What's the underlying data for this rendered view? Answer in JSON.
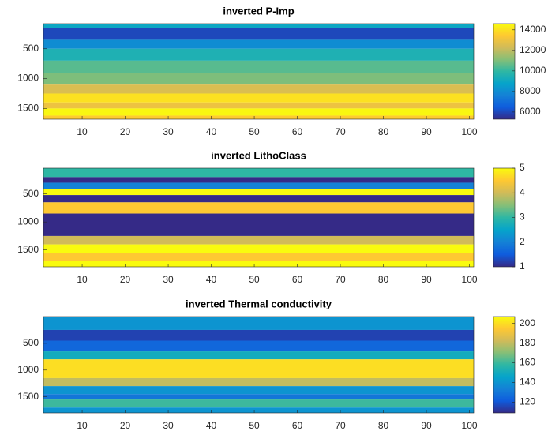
{
  "chart_data": [
    {
      "type": "heatmap",
      "title": "inverted P-Imp",
      "colormap": "parula",
      "yreverse": true,
      "xlim": [
        1,
        101
      ],
      "xticks": [
        10,
        20,
        30,
        40,
        50,
        60,
        70,
        80,
        90,
        100
      ],
      "ylim": [
        80,
        1680
      ],
      "yticks": [
        500,
        1000,
        1500
      ],
      "y_edges": [
        80,
        150,
        350,
        500,
        700,
        900,
        1100,
        1250,
        1400,
        1500,
        1620,
        1680
      ],
      "values": [
        9000,
        6000,
        8000,
        9500,
        10500,
        11000,
        12500,
        14000,
        13000,
        14500,
        13500
      ],
      "clim": [
        5300,
        14600
      ],
      "cticks": [
        6000,
        8000,
        10000,
        12000,
        14000
      ]
    },
    {
      "type": "heatmap",
      "title": "inverted LithoClass",
      "colormap": "parula",
      "yreverse": true,
      "xlim": [
        1,
        101
      ],
      "xticks": [
        10,
        20,
        30,
        40,
        50,
        60,
        70,
        80,
        90,
        100
      ],
      "ylim": [
        40,
        1800
      ],
      "yticks": [
        500,
        1000,
        1500
      ],
      "y_edges": [
        40,
        200,
        300,
        420,
        520,
        650,
        850,
        1250,
        1400,
        1550,
        1700,
        1800
      ],
      "values": [
        3,
        1,
        2,
        5,
        1,
        4.5,
        1,
        4,
        5,
        4.5,
        5
      ],
      "clim": [
        1,
        5
      ],
      "cticks": [
        1,
        2,
        3,
        4,
        5
      ]
    },
    {
      "type": "heatmap",
      "title": "inverted Thermal conductivity",
      "colormap": "parula",
      "yreverse": true,
      "xlim": [
        1,
        101
      ],
      "xticks": [
        10,
        20,
        30,
        40,
        50,
        60,
        70,
        80,
        90,
        100
      ],
      "ylim": [
        0,
        1800
      ],
      "yticks": [
        500,
        1000,
        1500
      ],
      "y_edges": [
        0,
        250,
        450,
        650,
        800,
        1150,
        1300,
        1450,
        1550,
        1700,
        1800
      ],
      "values": [
        140,
        115,
        125,
        150,
        200,
        180,
        140,
        130,
        160,
        140
      ],
      "clim": [
        109,
        207
      ],
      "cticks": [
        120,
        140,
        160,
        180,
        200
      ]
    }
  ]
}
